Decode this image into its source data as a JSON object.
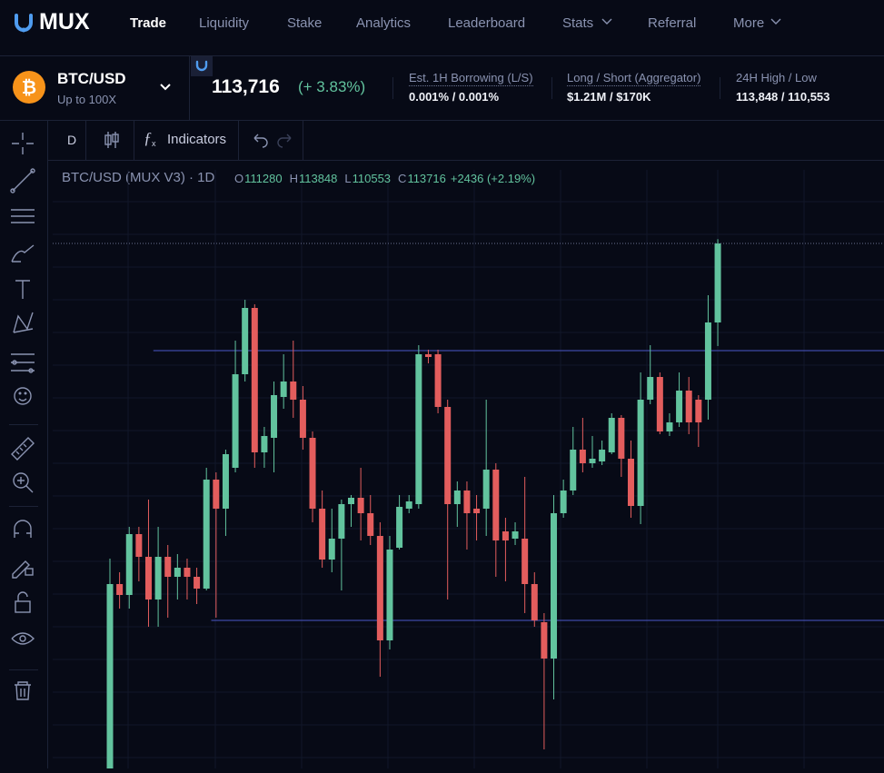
{
  "nav": {
    "logo": "MUX",
    "items": [
      "Trade",
      "Liquidity",
      "Stake",
      "Analytics",
      "Leaderboard",
      "Stats",
      "Referral",
      "More"
    ]
  },
  "ticker": {
    "pair": "BTC/USD",
    "leverage": "Up to 100X",
    "price": "113,716",
    "change": "(+ 3.83%)",
    "stats": [
      {
        "label": "Est. 1H Borrowing (L/S)",
        "value": "0.001% / 0.001%"
      },
      {
        "label": "Long / Short (Aggregator)",
        "value": "$1.21M / $170K"
      },
      {
        "label": "24H High / Low",
        "value": "113,848 / 110,553"
      }
    ]
  },
  "toolbar": {
    "interval": "D",
    "indicators": "Indicators"
  },
  "chart_data": {
    "type": "candlestick",
    "title": "BTC/USD (MUX V3) · 1D",
    "legend": {
      "labels": [
        "O",
        "H",
        "L",
        "C"
      ],
      "values": [
        111280,
        113848,
        110553,
        113716
      ],
      "change": "+2436 (+2.19%)"
    },
    "open": [
      97420,
      103216,
      102880,
      104756,
      104056,
      102740,
      104056,
      103440,
      103720,
      103440,
      103076,
      106436,
      105540,
      106800,
      109684,
      111728,
      107276,
      107724,
      108984,
      109460,
      108900,
      107724,
      105540,
      103972,
      104616,
      105680,
      105876,
      105400,
      104700,
      101480,
      104336,
      105540,
      105680,
      110300,
      110300,
      108676,
      105680,
      106100,
      105540,
      105540,
      106744,
      104840,
      104616,
      104616,
      103216,
      102040,
      100920,
      105400,
      106100,
      107360,
      106940,
      106996,
      107276,
      108340,
      107080,
      105624,
      108900,
      109600,
      107920,
      108200,
      109180,
      108900,
      108900,
      111280
    ],
    "high": [
      104000,
      103580,
      104980,
      104980,
      105820,
      104980,
      104420,
      104140,
      104000,
      103720,
      106800,
      106660,
      107360,
      110720,
      111980,
      111840,
      108060,
      109460,
      110300,
      110720,
      109320,
      107920,
      106100,
      105540,
      105820,
      105960,
      106800,
      105960,
      105120,
      104700,
      105960,
      105960,
      110580,
      110440,
      110440,
      108900,
      106380,
      106380,
      105960,
      108900,
      106940,
      105260,
      105120,
      106520,
      103580,
      102320,
      105960,
      106436,
      108060,
      108340,
      107780,
      107640,
      108480,
      108424,
      107640,
      109740,
      110580,
      109740,
      108480,
      109740,
      109600,
      109040,
      112120,
      113848
    ],
    "low": [
      97140,
      102460,
      102460,
      103300,
      101900,
      101900,
      102180,
      102740,
      102740,
      102600,
      103020,
      102180,
      104700,
      106660,
      109460,
      106800,
      106800,
      106660,
      108620,
      108340,
      107360,
      105120,
      103720,
      103580,
      103020,
      104980,
      104560,
      104420,
      100360,
      101200,
      104280,
      105400,
      105540,
      110020,
      108480,
      102740,
      104980,
      104280,
      104560,
      104700,
      103440,
      103300,
      104420,
      102320,
      101900,
      98120,
      99660,
      105260,
      105960,
      106660,
      106800,
      106884,
      107220,
      106520,
      105260,
      105064,
      108760,
      107836,
      107780,
      108060,
      107836,
      107444,
      108284,
      110553
    ],
    "close": [
      103216,
      102880,
      104756,
      104056,
      102740,
      104056,
      103440,
      103720,
      103440,
      103076,
      106436,
      105540,
      107220,
      109684,
      111728,
      107276,
      107780,
      109040,
      109460,
      108900,
      107724,
      105540,
      103972,
      104616,
      105680,
      105876,
      105400,
      104700,
      101480,
      104280,
      105596,
      105764,
      110300,
      110216,
      108676,
      105680,
      106100,
      105400,
      105400,
      106744,
      104560,
      104560,
      104840,
      103216,
      102096,
      100920,
      105400,
      106100,
      107360,
      106940,
      107080,
      107360,
      108340,
      107080,
      105624,
      108900,
      109600,
      107920,
      108200,
      109180,
      108200,
      108200,
      111280,
      113716
    ],
    "up_color": "#62c39e",
    "down_color": "#e35d5d",
    "ylim": [
      97532,
      115984
    ],
    "hlines": [
      {
        "value": 110412,
        "start": 5,
        "color": "#4b58c9"
      },
      {
        "value": 102096,
        "start": 11,
        "color": "#4b58c9"
      }
    ]
  }
}
